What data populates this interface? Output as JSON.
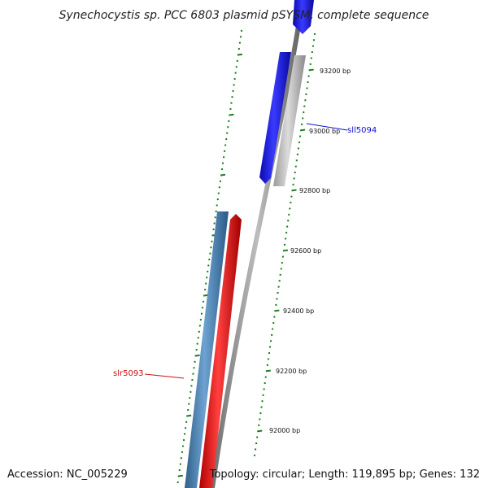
{
  "title": "Synechocystis sp. PCC 6803 plasmid pSYSM, complete sequence",
  "footer": {
    "accession": "Accession: NC_005229",
    "summary": "Topology: circular; Length: 119,895 bp; Genes: 132"
  },
  "colors": {
    "tick": "#1e7a1e",
    "backbone": "#8c8c8c",
    "gene_forward_blue": "#1010ee",
    "gene_grey": "#b0b0b0",
    "gene_steelblue": "#4682b4",
    "gene_red": "#ee1010",
    "label_blue": "#1010cc",
    "label_red": "#cc1010"
  },
  "scale_labels": [
    {
      "text": "93200 bp"
    },
    {
      "text": "93000 bp"
    },
    {
      "text": "92800 bp"
    },
    {
      "text": "92600 bp"
    },
    {
      "text": "92400 bp"
    },
    {
      "text": "92200 bp"
    },
    {
      "text": "92000 bp"
    }
  ],
  "gene_labels": [
    {
      "text": "sll5094",
      "color": "#1010cc"
    },
    {
      "text": "slr5093",
      "color": "#cc1010"
    }
  ]
}
